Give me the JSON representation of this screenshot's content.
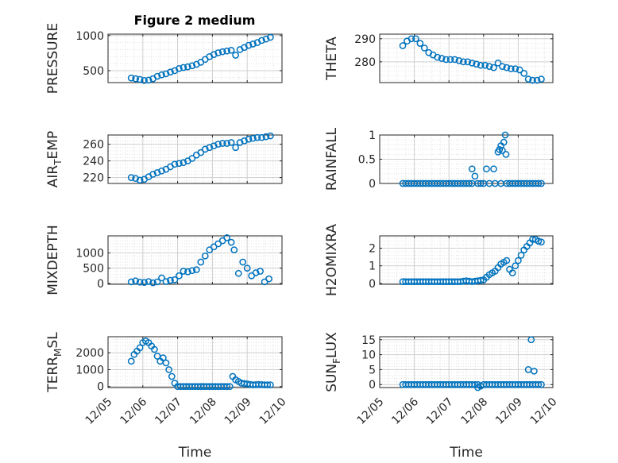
{
  "figure": {
    "title": "Figure 2 medium"
  },
  "colors": {
    "marker": "#0072BD",
    "axis": "#262626",
    "grid": "#dcdcdc",
    "background": "#ffffff"
  },
  "chart_data": [
    {
      "type": "scatter",
      "ylabel": "PRESSURE",
      "xlabel": "",
      "xlim": [
        "12/05",
        "12/10"
      ],
      "ylim": [
        330,
        1020
      ],
      "yticks": [
        500,
        1000
      ],
      "ytick_labels": [
        "500",
        "1000"
      ],
      "grid": true,
      "legend": "none",
      "x": [
        "12/05 16:00",
        "12/05 19:00",
        "12/05 22:00",
        "12/06 01:00",
        "12/06 04:00",
        "12/06 07:00",
        "12/06 10:00",
        "12/06 13:00",
        "12/06 16:00",
        "12/06 19:00",
        "12/06 22:00",
        "12/07 01:00",
        "12/07 04:00",
        "12/07 07:00",
        "12/07 10:00",
        "12/07 13:00",
        "12/07 16:00",
        "12/07 19:00",
        "12/07 22:00",
        "12/08 01:00",
        "12/08 04:00",
        "12/08 07:00",
        "12/08 10:00",
        "12/08 13:00",
        "12/08 16:00",
        "12/08 19:00",
        "12/08 22:00",
        "12/09 01:00",
        "12/09 04:00",
        "12/09 07:00",
        "12/09 10:00",
        "12/09 13:00",
        "12/09 16:00"
      ],
      "y": [
        395,
        385,
        375,
        360,
        365,
        385,
        420,
        440,
        455,
        480,
        500,
        530,
        545,
        555,
        570,
        590,
        620,
        660,
        700,
        730,
        755,
        770,
        780,
        790,
        720,
        800,
        830,
        860,
        880,
        900,
        930,
        950,
        975
      ]
    },
    {
      "type": "scatter",
      "ylabel": "THETA",
      "xlabel": "",
      "xlim": [
        "12/05",
        "12/10"
      ],
      "ylim": [
        271,
        292
      ],
      "yticks": [
        280,
        290
      ],
      "ytick_labels": [
        "280",
        "290"
      ],
      "grid": true,
      "legend": "none",
      "x": [
        "12/05 16:00",
        "12/05 19:00",
        "12/05 22:00",
        "12/06 01:00",
        "12/06 04:00",
        "12/06 07:00",
        "12/06 10:00",
        "12/06 13:00",
        "12/06 16:00",
        "12/06 19:00",
        "12/06 22:00",
        "12/07 01:00",
        "12/07 04:00",
        "12/07 07:00",
        "12/07 10:00",
        "12/07 13:00",
        "12/07 16:00",
        "12/07 19:00",
        "12/07 22:00",
        "12/08 01:00",
        "12/08 04:00",
        "12/08 07:00",
        "12/08 10:00",
        "12/08 13:00",
        "12/08 16:00",
        "12/08 19:00",
        "12/08 22:00",
        "12/09 01:00",
        "12/09 04:00",
        "12/09 07:00",
        "12/09 10:00",
        "12/09 13:00",
        "12/09 16:00"
      ],
      "y": [
        287,
        289,
        290,
        290,
        288,
        286,
        284,
        283,
        282,
        281.5,
        281,
        281,
        281,
        280.5,
        280,
        280,
        279.5,
        279,
        278.5,
        278.5,
        278,
        277.5,
        279.5,
        278,
        277.5,
        277,
        277,
        276.5,
        275,
        272.5,
        272,
        272,
        272.5
      ]
    },
    {
      "type": "scatter",
      "ylabel": "AIR_TEMP",
      "xlabel": "",
      "xlim": [
        "12/05",
        "12/10"
      ],
      "ylim": [
        213,
        271
      ],
      "yticks": [
        220,
        240,
        260
      ],
      "ytick_labels": [
        "220",
        "240",
        "260"
      ],
      "grid": true,
      "legend": "none",
      "x": [
        "12/05 16:00",
        "12/05 19:00",
        "12/05 22:00",
        "12/06 01:00",
        "12/06 04:00",
        "12/06 07:00",
        "12/06 10:00",
        "12/06 13:00",
        "12/06 16:00",
        "12/06 19:00",
        "12/06 22:00",
        "12/07 01:00",
        "12/07 04:00",
        "12/07 07:00",
        "12/07 10:00",
        "12/07 13:00",
        "12/07 16:00",
        "12/07 19:00",
        "12/07 22:00",
        "12/08 01:00",
        "12/08 04:00",
        "12/08 07:00",
        "12/08 10:00",
        "12/08 13:00",
        "12/08 16:00",
        "12/08 19:00",
        "12/08 22:00",
        "12/09 01:00",
        "12/09 04:00",
        "12/09 07:00",
        "12/09 10:00",
        "12/09 13:00",
        "12/09 16:00"
      ],
      "y": [
        220,
        219,
        217,
        218,
        221,
        224,
        226,
        228,
        230,
        233,
        236,
        237,
        238,
        240,
        243,
        247,
        250,
        254,
        256,
        258,
        260,
        261,
        261,
        262,
        256,
        262,
        264,
        266,
        267,
        268,
        268,
        269,
        270
      ]
    },
    {
      "type": "scatter",
      "ylabel": "RAINFALL",
      "xlabel": "",
      "xlim": [
        "12/05",
        "12/10"
      ],
      "ylim": [
        0,
        1
      ],
      "yticks": [
        0,
        0.5,
        1
      ],
      "ytick_labels": [
        "0",
        "0.5",
        "1"
      ],
      "grid": true,
      "legend": "none",
      "x": [
        "12/05 16:00",
        "12/05 20:00",
        "12/06 00:00",
        "12/06 04:00",
        "12/06 08:00",
        "12/06 12:00",
        "12/06 16:00",
        "12/06 20:00",
        "12/07 00:00",
        "12/07 04:00",
        "12/07 08:00",
        "12/07 12:00",
        "12/07 16:00",
        "12/07 20:00",
        "12/08 00:00",
        "12/08 04:00",
        "12/08 08:00",
        "12/08 12:00",
        "12/08 16:00",
        "12/08 20:00",
        "12/09 00:00",
        "12/09 04:00",
        "12/09 08:00",
        "12/09 12:00",
        "12/09 16:00",
        "12/07 16:00",
        "12/08 02:00",
        "12/08 07:00",
        "12/08 10:00",
        "12/08 11:00",
        "12/08 12:00",
        "12/08 13:00",
        "12/08 14:00",
        "12/08 15:00",
        "12/08 15:30"
      ],
      "y": [
        0,
        0,
        0,
        0,
        0,
        0,
        0,
        0,
        0,
        0,
        0,
        0,
        0,
        0,
        0,
        0,
        0,
        0,
        0,
        0,
        0,
        0,
        0,
        0,
        0,
        0.3,
        0.3,
        0.3,
        0.65,
        0.7,
        0.78,
        0.68,
        0.85,
        1.0,
        0.6
      ]
    },
    {
      "type": "scatter",
      "ylabel": "MIXDEPTH",
      "xlabel": "",
      "xlim": [
        "12/05",
        "12/10"
      ],
      "ylim": [
        -30,
        1560
      ],
      "yticks": [
        0,
        500,
        1000
      ],
      "ytick_labels": [
        "0",
        "500",
        "1000"
      ],
      "grid": true,
      "legend": "none",
      "x": [
        "12/05 16:00",
        "12/05 19:00",
        "12/05 22:00",
        "12/06 01:00",
        "12/06 04:00",
        "12/06 07:00",
        "12/06 10:00",
        "12/06 13:00",
        "12/06 16:00",
        "12/06 19:00",
        "12/06 22:00",
        "12/07 01:00",
        "12/07 04:00",
        "12/07 07:00",
        "12/07 10:00",
        "12/07 13:00",
        "12/07 16:00",
        "12/07 19:00",
        "12/07 22:00",
        "12/08 01:00",
        "12/08 04:00",
        "12/08 07:00",
        "12/08 10:00",
        "12/08 13:00",
        "12/08 15:00",
        "12/08 18:00",
        "12/08 21:00",
        "12/09 00:00",
        "12/09 03:00",
        "12/09 06:00",
        "12/09 09:00",
        "12/09 12:00",
        "12/09 15:00"
      ],
      "y": [
        50,
        80,
        40,
        30,
        60,
        20,
        50,
        180,
        60,
        100,
        120,
        250,
        400,
        380,
        420,
        450,
        700,
        900,
        1100,
        1200,
        1300,
        1400,
        1500,
        1350,
        1100,
        330,
        700,
        500,
        250,
        350,
        400,
        50,
        150
      ]
    },
    {
      "type": "scatter",
      "ylabel": "H2OMIXRA",
      "xlabel": "",
      "xlim": [
        "12/05",
        "12/10"
      ],
      "ylim": [
        -0.05,
        2.7
      ],
      "yticks": [
        0,
        1,
        2
      ],
      "ytick_labels": [
        "0",
        "1",
        "2"
      ],
      "grid": true,
      "legend": "none",
      "x": [
        "12/05 16:00",
        "12/05 20:00",
        "12/06 00:00",
        "12/06 04:00",
        "12/06 08:00",
        "12/06 12:00",
        "12/06 16:00",
        "12/06 20:00",
        "12/07 00:00",
        "12/07 04:00",
        "12/07 08:00",
        "12/07 12:00",
        "12/07 16:00",
        "12/07 20:00",
        "12/08 00:00",
        "12/08 04:00",
        "12/08 08:00",
        "12/08 10:00",
        "12/08 12:00",
        "12/08 14:00",
        "12/08 16:00",
        "12/08 18:00",
        "12/08 20:00",
        "12/08 22:00",
        "12/09 00:00",
        "12/09 02:00",
        "12/09 04:00",
        "12/09 06:00",
        "12/09 08:00",
        "12/09 10:00",
        "12/09 12:00",
        "12/09 14:00",
        "12/09 16:00"
      ],
      "y": [
        0.1,
        0.1,
        0.1,
        0.1,
        0.1,
        0.1,
        0.1,
        0.1,
        0.1,
        0.1,
        0.1,
        0.15,
        0.1,
        0.15,
        0.2,
        0.5,
        0.7,
        0.9,
        1.1,
        1.2,
        1.3,
        0.8,
        0.6,
        1.0,
        1.3,
        1.6,
        1.9,
        2.1,
        2.3,
        2.5,
        2.5,
        2.4,
        2.35
      ]
    },
    {
      "type": "scatter",
      "ylabel": "TERR_MSL",
      "xlabel": "Time",
      "xlim": [
        "12/05",
        "12/10"
      ],
      "ylim": [
        -60,
        2950
      ],
      "yticks": [
        0,
        1000,
        2000
      ],
      "ytick_labels": [
        "0",
        "1000",
        "2000"
      ],
      "xticks": [
        "12/05",
        "12/06",
        "12/07",
        "12/08",
        "12/09",
        "12/10"
      ],
      "grid": true,
      "legend": "none",
      "x": [
        "12/05 16:00",
        "12/05 18:00",
        "12/05 20:00",
        "12/05 22:00",
        "12/06 00:00",
        "12/06 02:00",
        "12/06 04:00",
        "12/06 06:00",
        "12/06 08:00",
        "12/06 10:00",
        "12/06 12:00",
        "12/06 14:00",
        "12/06 16:00",
        "12/06 18:00",
        "12/06 20:00",
        "12/06 22:00",
        "12/07 00:00",
        "12/07 04:00",
        "12/07 08:00",
        "12/07 12:00",
        "12/07 16:00",
        "12/07 20:00",
        "12/08 00:00",
        "12/08 04:00",
        "12/08 08:00",
        "12/08 12:00",
        "12/08 14:00",
        "12/08 16:00",
        "12/08 20:00",
        "12/09 00:00",
        "12/09 04:00",
        "12/09 08:00",
        "12/09 12:00",
        "12/09 16:00"
      ],
      "y": [
        1500,
        1900,
        2100,
        2300,
        2600,
        2700,
        2600,
        2400,
        2200,
        1800,
        1500,
        1700,
        1400,
        1000,
        600,
        200,
        0,
        0,
        0,
        0,
        0,
        0,
        0,
        0,
        0,
        0,
        600,
        400,
        200,
        150,
        100,
        120,
        100,
        100
      ]
    },
    {
      "type": "scatter",
      "ylabel": "SUN_FLUX",
      "xlabel": "Time",
      "xlim": [
        "12/05",
        "12/10"
      ],
      "ylim": [
        -1,
        16
      ],
      "yticks": [
        0,
        5,
        10,
        15
      ],
      "ytick_labels": [
        "0",
        "5",
        "10",
        "15"
      ],
      "xticks": [
        "12/05",
        "12/06",
        "12/07",
        "12/08",
        "12/09",
        "12/10"
      ],
      "grid": true,
      "legend": "none",
      "x": [
        "12/05 16:00",
        "12/05 20:00",
        "12/06 00:00",
        "12/06 04:00",
        "12/06 08:00",
        "12/06 12:00",
        "12/06 16:00",
        "12/06 20:00",
        "12/07 00:00",
        "12/07 04:00",
        "12/07 08:00",
        "12/07 12:00",
        "12/07 16:00",
        "12/07 20:00",
        "12/08 00:00",
        "12/08 04:00",
        "12/08 08:00",
        "12/08 12:00",
        "12/08 16:00",
        "12/08 20:00",
        "12/09 00:00",
        "12/09 04:00",
        "12/09 06:00",
        "12/09 08:00",
        "12/09 10:00",
        "12/09 12:00",
        "12/09 14:00",
        "12/09 16:00",
        "12/07 20:00",
        "12/09 07:00",
        "12/09 09:00",
        "12/09 11:00"
      ],
      "y": [
        0,
        0,
        0,
        0,
        0,
        0,
        0,
        0,
        0,
        0,
        0,
        0,
        0,
        0,
        0,
        0,
        0,
        0,
        0,
        0,
        0,
        0,
        0,
        0,
        0,
        0,
        0,
        0,
        -1,
        5,
        15,
        4.5
      ]
    }
  ]
}
